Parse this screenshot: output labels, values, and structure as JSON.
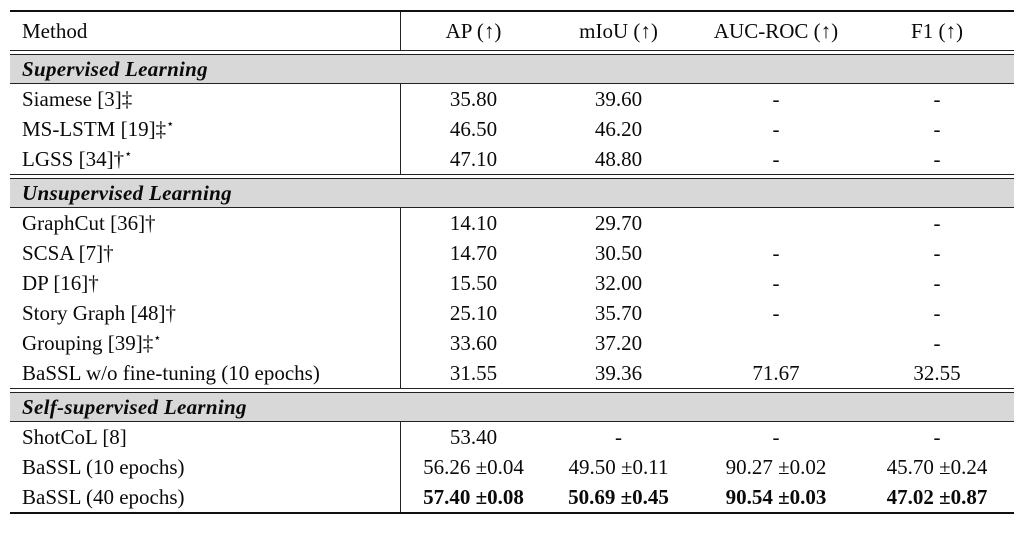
{
  "table": {
    "columns": [
      "Method",
      "AP (↑)",
      "mIoU (↑)",
      "AUC-ROC (↑)",
      "F1 (↑)"
    ],
    "sections": [
      {
        "title": "Supervised Learning",
        "rows": [
          {
            "method": "Siamese [3]‡",
            "values": [
              "35.80",
              "39.60",
              "-",
              "-"
            ]
          },
          {
            "method": "MS-LSTM [19]‡",
            "method_sup": "⋆",
            "values": [
              "46.50",
              "46.20",
              "-",
              "-"
            ]
          },
          {
            "method": "LGSS [34]†",
            "method_sup": "⋆",
            "values": [
              "47.10",
              "48.80",
              "-",
              "-"
            ]
          }
        ]
      },
      {
        "title": "Unsupervised Learning",
        "rows": [
          {
            "method": "GraphCut [36]†",
            "values": [
              "14.10",
              "29.70",
              "",
              "-"
            ]
          },
          {
            "method": "SCSA [7]†",
            "values": [
              "14.70",
              "30.50",
              "-",
              "-"
            ]
          },
          {
            "method": "DP [16]†",
            "values": [
              "15.50",
              "32.00",
              "-",
              "-"
            ]
          },
          {
            "method": "Story Graph [48]†",
            "values": [
              "25.10",
              "35.70",
              "-",
              "-"
            ]
          },
          {
            "method": "Grouping [39]‡",
            "method_sup": "⋆",
            "values": [
              "33.60",
              "37.20",
              "",
              "-"
            ]
          },
          {
            "method": "BaSSL w/o fine-tuning (10 epochs)",
            "values": [
              "31.55",
              "39.36",
              "71.67",
              "32.55"
            ]
          }
        ]
      },
      {
        "title": "Self-supervised Learning",
        "rows": [
          {
            "method": "ShotCoL [8]",
            "values": [
              "53.40",
              "-",
              "-",
              "-"
            ]
          },
          {
            "method": "BaSSL (10 epochs)",
            "values": [
              "56.26 ±0.04",
              "49.50 ±0.11",
              "90.27 ±0.02",
              "45.70 ±0.24"
            ]
          },
          {
            "method": "BaSSL (40 epochs)",
            "bold": true,
            "values": [
              "57.40 ±0.08",
              "50.69 ±0.45",
              "90.54 ±0.03",
              "47.02 ±0.87"
            ]
          }
        ]
      }
    ],
    "colors": {
      "section_band": "#d8d8d8",
      "rule": "#222222",
      "text": "#0a0a0a"
    }
  }
}
